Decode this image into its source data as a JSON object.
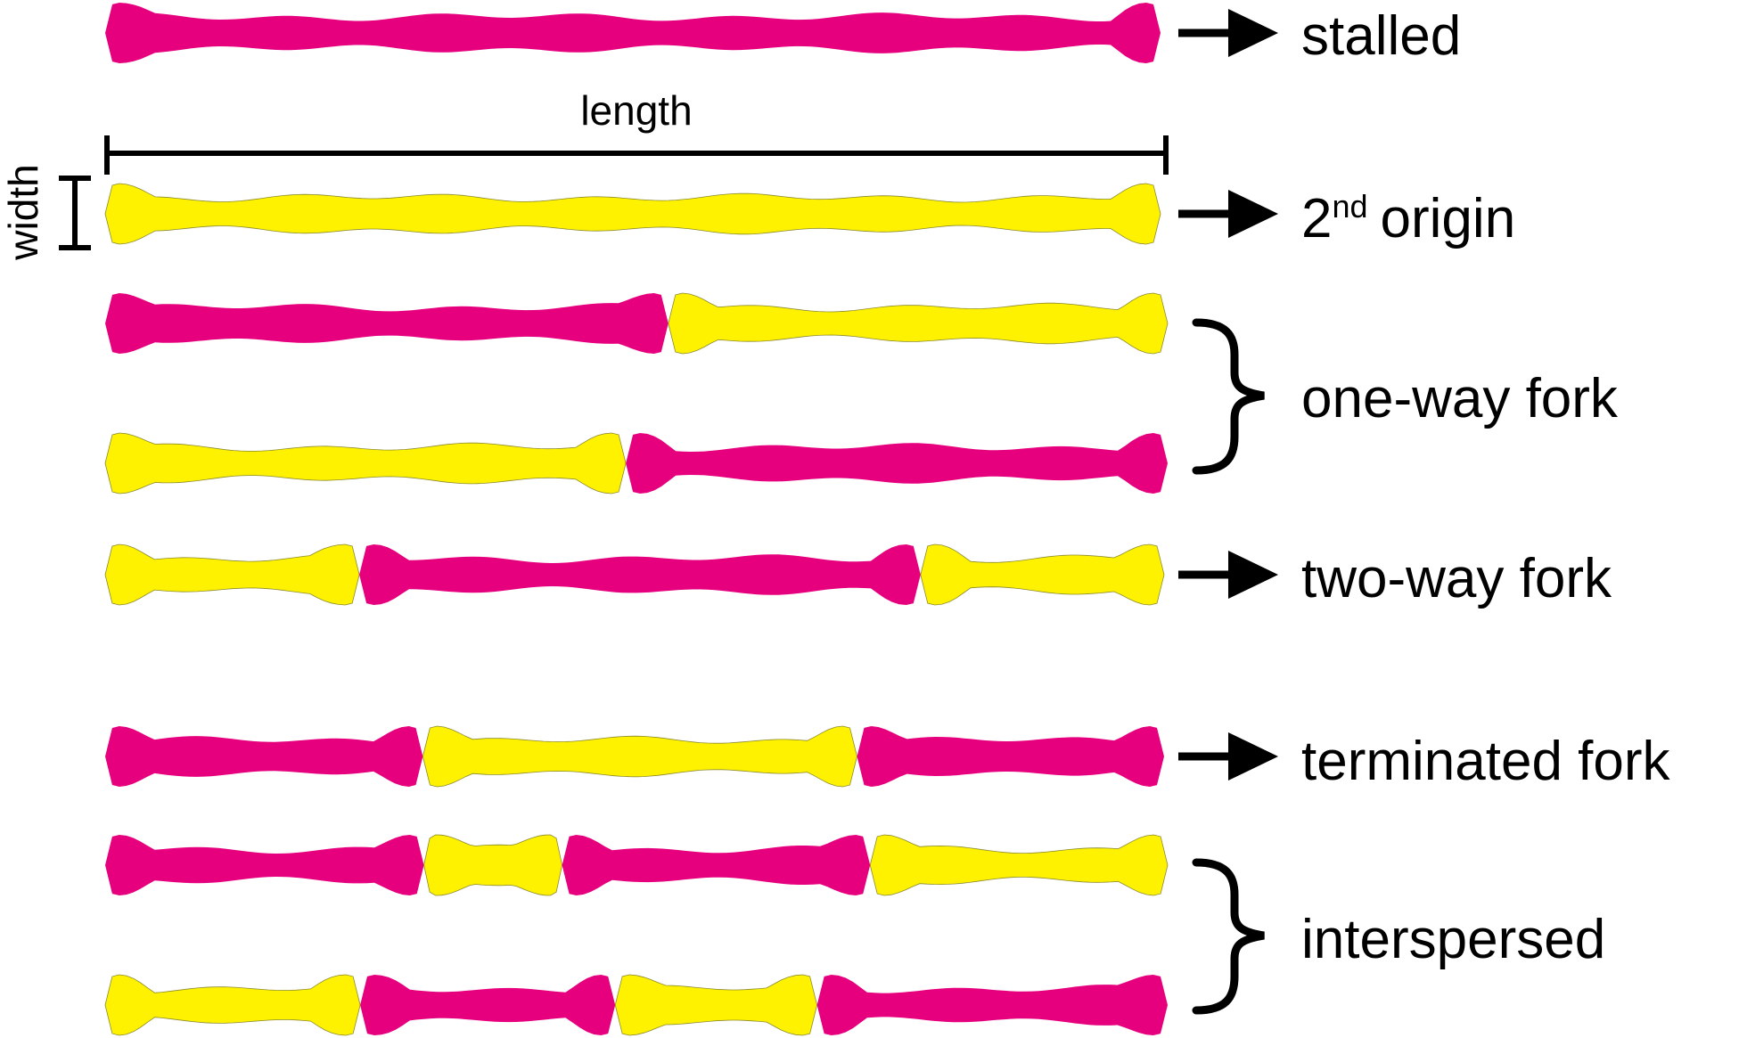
{
  "colors": {
    "labeled_segment": "#e6007e",
    "unlabeled_segment": "#fff200",
    "ink": "#000000"
  },
  "measure": {
    "length_label": "length",
    "width_label": "width"
  },
  "labels": {
    "stalled": "stalled",
    "second_origin_number": "2",
    "second_origin_suffix": "nd",
    "second_origin_word": "origin",
    "one_way_fork": "one-way fork",
    "two_way_fork": "two-way fork",
    "terminated_fork": "terminated fork",
    "interspersed": "interspersed"
  },
  "fibers": [
    {
      "name": "stalled-fiber",
      "segments": [
        {
          "color": "magenta",
          "from": 0,
          "to": 1
        }
      ]
    },
    {
      "name": "second-origin-fiber",
      "segments": [
        {
          "color": "yellow",
          "from": 0,
          "to": 1
        }
      ]
    },
    {
      "name": "one-way-fork-fiber-1",
      "segments": [
        {
          "color": "magenta",
          "from": 0,
          "to": 0.53
        },
        {
          "color": "yellow",
          "from": 0.53,
          "to": 1
        }
      ]
    },
    {
      "name": "one-way-fork-fiber-2",
      "segments": [
        {
          "color": "yellow",
          "from": 0,
          "to": 0.49
        },
        {
          "color": "magenta",
          "from": 0.49,
          "to": 1
        }
      ]
    },
    {
      "name": "two-way-fork-fiber",
      "segments": [
        {
          "color": "yellow",
          "from": 0,
          "to": 0.24
        },
        {
          "color": "magenta",
          "from": 0.24,
          "to": 0.77
        },
        {
          "color": "yellow",
          "from": 0.77,
          "to": 1
        }
      ]
    },
    {
      "name": "terminated-fork-fiber",
      "segments": [
        {
          "color": "magenta",
          "from": 0,
          "to": 0.3
        },
        {
          "color": "yellow",
          "from": 0.3,
          "to": 0.71
        },
        {
          "color": "magenta",
          "from": 0.71,
          "to": 1
        }
      ]
    },
    {
      "name": "interspersed-fiber-1",
      "segments": [
        {
          "color": "magenta",
          "from": 0,
          "to": 0.3
        },
        {
          "color": "yellow",
          "from": 0.3,
          "to": 0.43
        },
        {
          "color": "magenta",
          "from": 0.43,
          "to": 0.72
        },
        {
          "color": "yellow",
          "from": 0.72,
          "to": 1
        }
      ]
    },
    {
      "name": "interspersed-fiber-2",
      "segments": [
        {
          "color": "yellow",
          "from": 0,
          "to": 0.24
        },
        {
          "color": "magenta",
          "from": 0.24,
          "to": 0.48
        },
        {
          "color": "yellow",
          "from": 0.48,
          "to": 0.67
        },
        {
          "color": "magenta",
          "from": 0.67,
          "to": 1
        }
      ]
    }
  ]
}
